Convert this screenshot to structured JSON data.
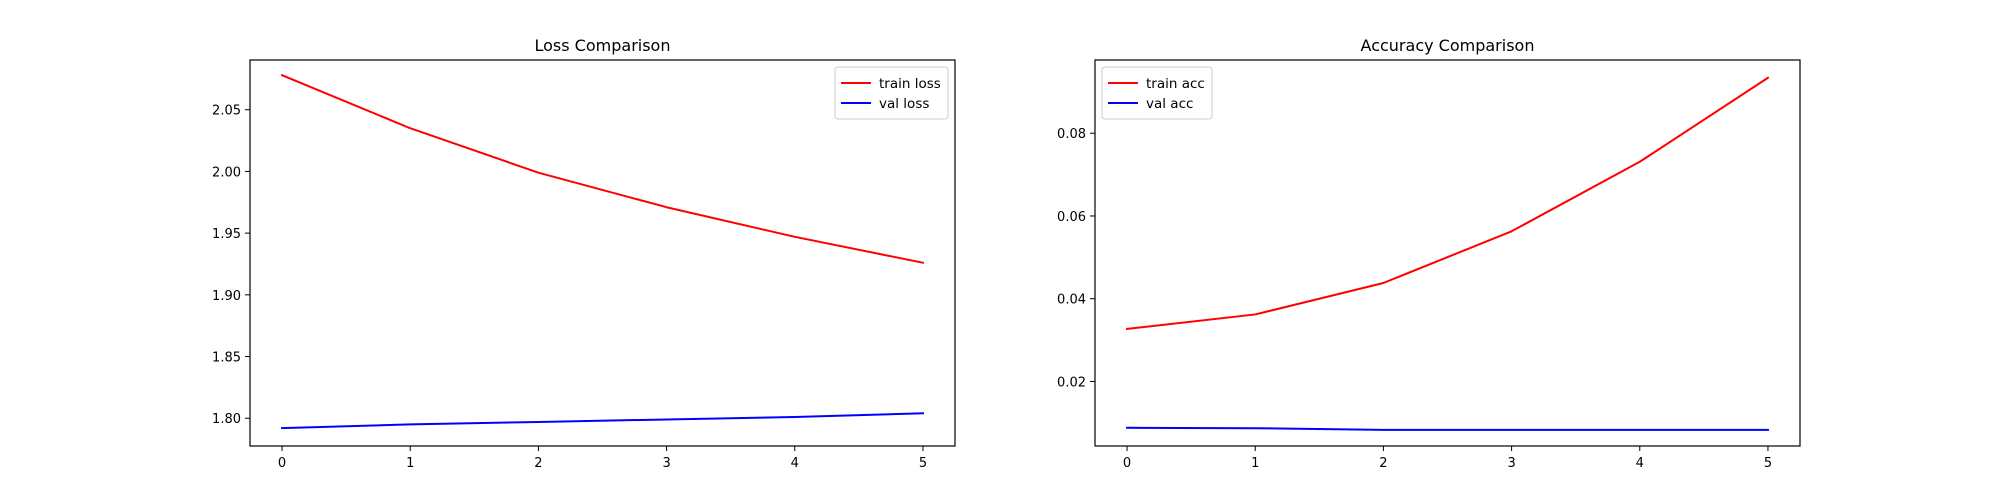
{
  "chart_data": [
    {
      "type": "line",
      "title": "Loss Comparison",
      "xlabel": "",
      "ylabel": "",
      "x": [
        0,
        1,
        2,
        3,
        4,
        5
      ],
      "xticks": [
        "0",
        "1",
        "2",
        "3",
        "4",
        "5"
      ],
      "yticks": [
        "1.80",
        "1.85",
        "1.90",
        "1.95",
        "2.00",
        "2.05"
      ],
      "xlim": [
        -0.25,
        5.25
      ],
      "ylim": [
        1.7775,
        2.0903
      ],
      "grid": false,
      "legend_position": "top-right",
      "series": [
        {
          "name": "train loss",
          "color": "#ff0000",
          "values": [
            2.078,
            2.035,
            1.999,
            1.971,
            1.947,
            1.926
          ]
        },
        {
          "name": "val loss",
          "color": "#0000ff",
          "values": [
            1.792,
            1.795,
            1.797,
            1.799,
            1.801,
            1.804
          ]
        }
      ]
    },
    {
      "type": "line",
      "title": "Accuracy Comparison",
      "xlabel": "",
      "ylabel": "",
      "x": [
        0,
        1,
        2,
        3,
        4,
        5
      ],
      "xticks": [
        "0",
        "1",
        "2",
        "3",
        "4",
        "5"
      ],
      "yticks": [
        "0.02",
        "0.04",
        "0.06",
        "0.08"
      ],
      "xlim": [
        -0.25,
        5.25
      ],
      "ylim": [
        0.0044,
        0.0977
      ],
      "grid": false,
      "legend_position": "top-left",
      "series": [
        {
          "name": "train acc",
          "color": "#ff0000",
          "values": [
            0.0327,
            0.0362,
            0.0438,
            0.0563,
            0.0731,
            0.0934
          ]
        },
        {
          "name": "val acc",
          "color": "#0000ff",
          "values": [
            0.0088,
            0.0087,
            0.0083,
            0.0083,
            0.0083,
            0.0083
          ]
        }
      ]
    }
  ]
}
